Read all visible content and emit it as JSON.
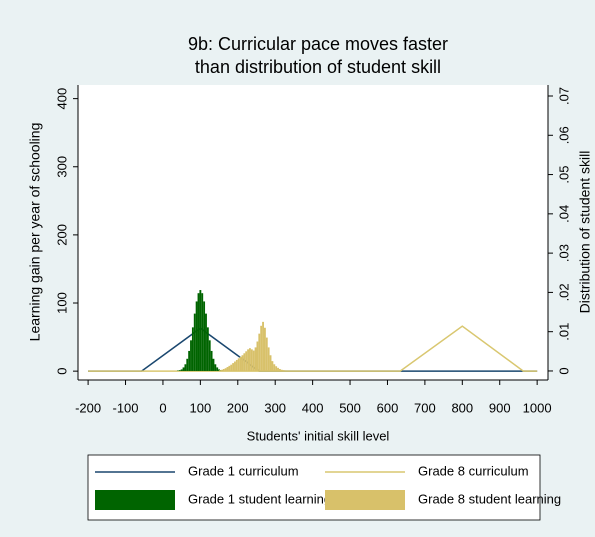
{
  "chart_data": {
    "type": "combo",
    "title": [
      "9b: Curricular pace moves faster",
      "than distribution of student skill"
    ],
    "x_label": "Students' initial skill level",
    "y_label": "Learning gain per year of schooling",
    "y2_label": "Distribution of student skill",
    "xlim": [
      -227,
      1029
    ],
    "xticks": [
      -200,
      -100,
      0,
      100,
      200,
      300,
      400,
      500,
      600,
      700,
      800,
      900,
      1000
    ],
    "ylim": [
      -13,
      420
    ],
    "yticks": [
      0,
      100,
      200,
      300,
      400
    ],
    "y2lim": [
      -0.0023,
      0.0728
    ],
    "y2ticks": [
      0,
      {
        "value": 0.01,
        "label": ".01"
      },
      {
        "value": 0.02,
        "label": ".02"
      },
      {
        "value": 0.03,
        "label": ".03"
      },
      {
        "value": 0.04,
        "label": ".04"
      },
      {
        "value": 0.05,
        "label": ".05"
      },
      {
        "value": 0.06,
        "label": ".06"
      },
      {
        "value": 0.07,
        "label": ".07"
      }
    ],
    "legend": "bottom",
    "series": [
      {
        "name": "Grade 1 curriculum",
        "type": "line",
        "color": "#1a476f",
        "x": [
          -200,
          -57,
          100,
          257,
          1000
        ],
        "values": [
          0,
          0,
          63,
          0,
          0
        ]
      },
      {
        "name": "Grade 8 curriculum",
        "type": "line",
        "color": "#d9c770",
        "x": [
          -200,
          634,
          800,
          963,
          1000
        ],
        "values": [
          0,
          0,
          66,
          0,
          0
        ]
      },
      {
        "name": "Grade 1 student learning",
        "type": "histogram",
        "axis": "y2",
        "color": "#006400",
        "bins": [
          37.5,
          42.5,
          47.5,
          52.5,
          57.5,
          62.5,
          67.5,
          72.5,
          77.5,
          82.5,
          87.5,
          92.5,
          97.5,
          102.5,
          107.5,
          112.5,
          117.5,
          122.5,
          127.5,
          132.5,
          137.5,
          142.5,
          147.5,
          152.5,
          157.5,
          162.5
        ],
        "values": [
          0.0001,
          0.0002,
          0.0004,
          0.0009,
          0.0017,
          0.0031,
          0.0051,
          0.0078,
          0.0111,
          0.0146,
          0.0177,
          0.0198,
          0.0206,
          0.0198,
          0.0177,
          0.0146,
          0.0111,
          0.0078,
          0.0051,
          0.0031,
          0.0017,
          0.0009,
          0.0004,
          0.0002,
          0.0001
        ]
      },
      {
        "name": "Grade 8 student learning",
        "type": "histogram",
        "axis": "y2",
        "color": "#d8c16a",
        "bins": [
          150,
          155,
          160,
          165,
          170,
          175,
          180,
          185,
          190,
          195,
          200,
          205,
          210,
          215,
          220,
          225,
          230,
          235,
          240,
          245,
          250,
          255,
          260,
          265,
          270,
          275,
          280,
          285,
          290,
          295,
          300,
          305,
          310,
          315,
          320,
          325,
          330
        ],
        "values": [
          0.0002,
          0.0003,
          0.0005,
          0.0007,
          0.001,
          0.0013,
          0.0016,
          0.002,
          0.0024,
          0.0028,
          0.0032,
          0.0036,
          0.004,
          0.0045,
          0.005,
          0.0055,
          0.0058,
          0.0055,
          0.0052,
          0.006,
          0.0075,
          0.0095,
          0.0115,
          0.0125,
          0.011,
          0.0085,
          0.006,
          0.004,
          0.0025,
          0.0017,
          0.0012,
          0.0008,
          0.0005,
          0.0003,
          0.0002,
          0.0001
        ]
      }
    ]
  }
}
